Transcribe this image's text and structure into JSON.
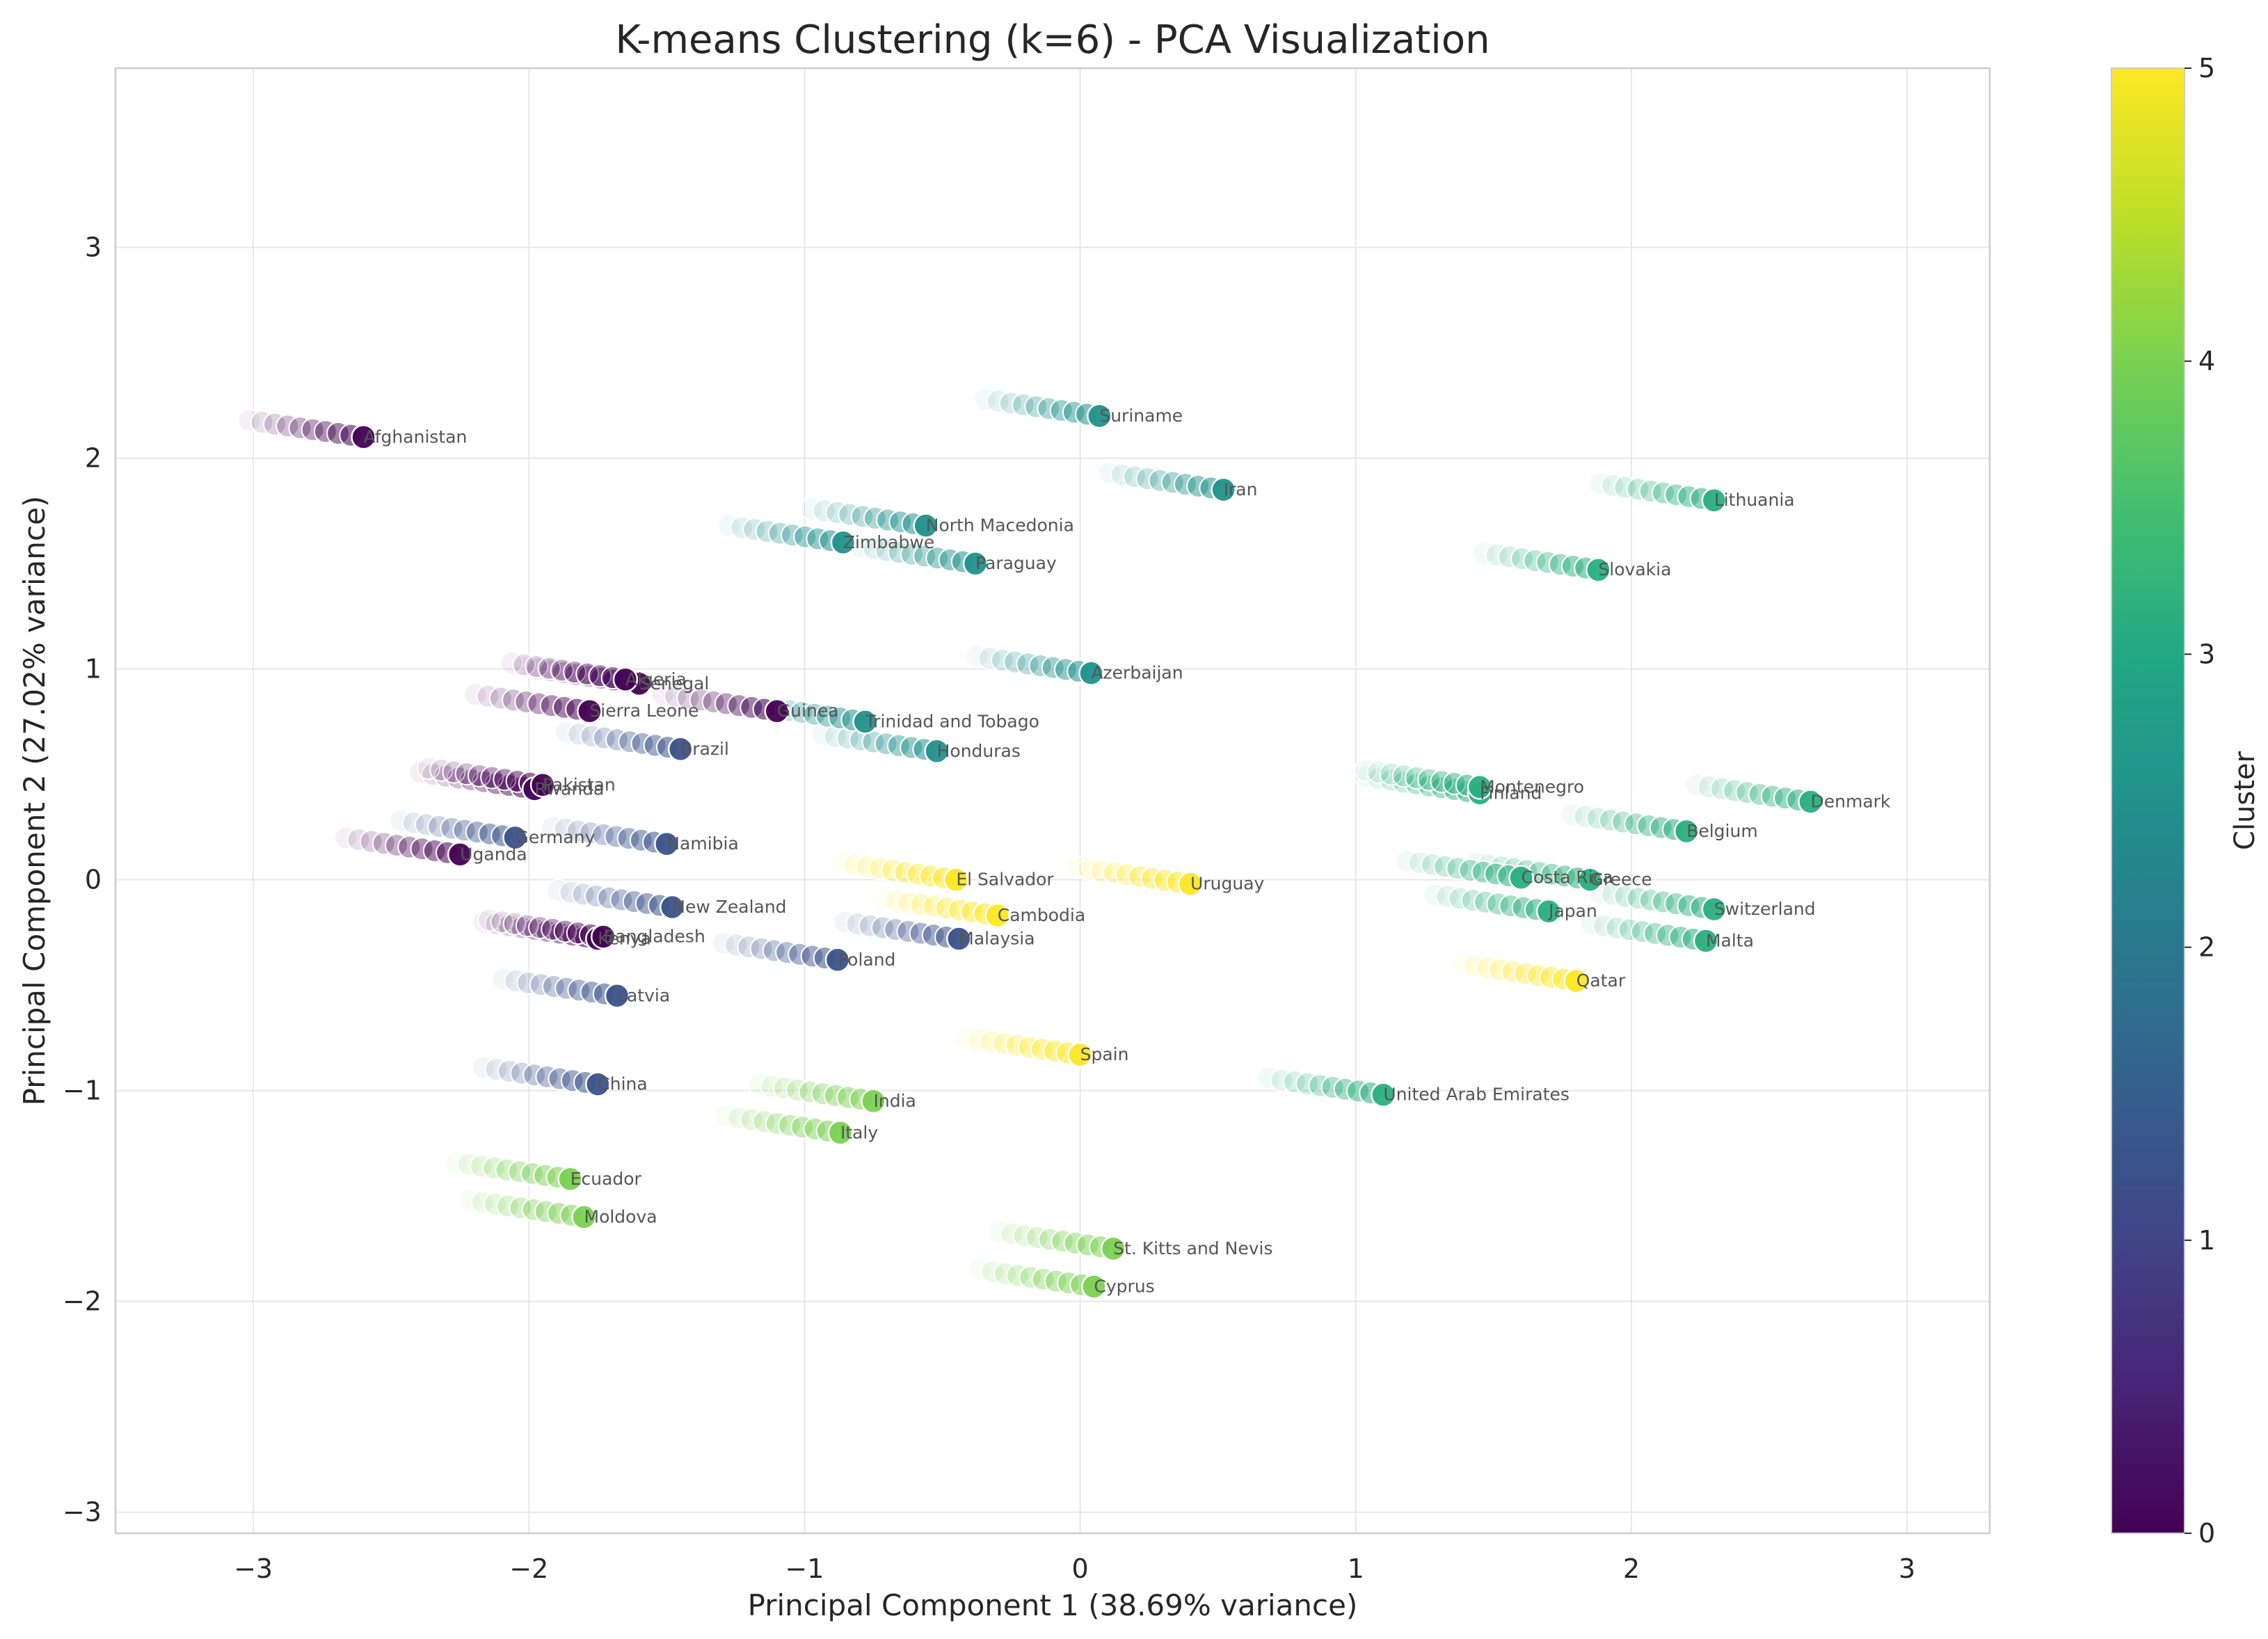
{
  "chart_data": {
    "type": "scatter",
    "title": "K-means Clustering (k=6) - PCA Visualization",
    "xlabel": "Principal Component 1 (38.69% variance)",
    "ylabel": "Principal Component 2 (27.02% variance)",
    "xlim": [
      -3.5,
      3.3
    ],
    "ylim": [
      -3.1,
      3.85
    ],
    "xticks": [
      -3,
      -2,
      -1,
      0,
      1,
      2,
      3
    ],
    "yticks": [
      -3,
      -2,
      -1,
      0,
      1,
      2,
      3
    ],
    "xtick_labels": [
      "−3",
      "−2",
      "−1",
      "0",
      "1",
      "2",
      "3"
    ],
    "ytick_labels": [
      "−3",
      "−2",
      "−1",
      "0",
      "1",
      "2",
      "3"
    ],
    "grid": true,
    "colormap": "viridis",
    "colorbar": {
      "label": "Cluster",
      "range": [
        0,
        5
      ],
      "ticks": [
        "0",
        "1",
        "2",
        "3",
        "4",
        "5"
      ]
    },
    "cluster_colors": [
      "#440154",
      "#3b528b",
      "#21918c",
      "#29af7f",
      "#7ad151",
      "#fde725"
    ],
    "points": [
      {
        "label": "Afghanistan",
        "x": -2.6,
        "y": 2.1,
        "cluster": 0
      },
      {
        "label": "Algeria",
        "x": -1.65,
        "y": 0.95,
        "cluster": 0
      },
      {
        "label": "Senegal",
        "x": -1.6,
        "y": 0.93,
        "cluster": 0
      },
      {
        "label": "Sierra Leone",
        "x": -1.78,
        "y": 0.8,
        "cluster": 0
      },
      {
        "label": "Guinea",
        "x": -1.1,
        "y": 0.8,
        "cluster": 0
      },
      {
        "label": "Pakistan",
        "x": -1.95,
        "y": 0.45,
        "cluster": 0
      },
      {
        "label": "Rwanda",
        "x": -1.98,
        "y": 0.43,
        "cluster": 0
      },
      {
        "label": "Uganda",
        "x": -2.25,
        "y": 0.12,
        "cluster": 0
      },
      {
        "label": "Kenya",
        "x": -1.75,
        "y": -0.28,
        "cluster": 0
      },
      {
        "label": "Bangladesh",
        "x": -1.73,
        "y": -0.27,
        "cluster": 0
      },
      {
        "label": "Brazil",
        "x": -1.45,
        "y": 0.62,
        "cluster": 1
      },
      {
        "label": "Germany",
        "x": -2.05,
        "y": 0.2,
        "cluster": 1
      },
      {
        "label": "Namibia",
        "x": -1.5,
        "y": 0.17,
        "cluster": 1
      },
      {
        "label": "New Zealand",
        "x": -1.48,
        "y": -0.13,
        "cluster": 1
      },
      {
        "label": "Latvia",
        "x": -1.68,
        "y": -0.55,
        "cluster": 1
      },
      {
        "label": "Poland",
        "x": -0.88,
        "y": -0.38,
        "cluster": 1
      },
      {
        "label": "Malaysia",
        "x": -0.44,
        "y": -0.28,
        "cluster": 1
      },
      {
        "label": "China",
        "x": -1.75,
        "y": -0.97,
        "cluster": 1
      },
      {
        "label": "Zimbabwe",
        "x": -0.86,
        "y": 1.6,
        "cluster": 2
      },
      {
        "label": "North Macedonia",
        "x": -0.56,
        "y": 1.68,
        "cluster": 2
      },
      {
        "label": "Paraguay",
        "x": -0.38,
        "y": 1.5,
        "cluster": 2
      },
      {
        "label": "Suriname",
        "x": 0.07,
        "y": 2.2,
        "cluster": 2
      },
      {
        "label": "Iran",
        "x": 0.52,
        "y": 1.85,
        "cluster": 2
      },
      {
        "label": "Azerbaijan",
        "x": 0.04,
        "y": 0.98,
        "cluster": 2
      },
      {
        "label": "Trinidad and Tobago",
        "x": -0.78,
        "y": 0.75,
        "cluster": 2
      },
      {
        "label": "Honduras",
        "x": -0.52,
        "y": 0.61,
        "cluster": 2
      },
      {
        "label": "Lithuania",
        "x": 2.3,
        "y": 1.8,
        "cluster": 3
      },
      {
        "label": "Slovakia",
        "x": 1.88,
        "y": 1.47,
        "cluster": 3
      },
      {
        "label": "Montenegro",
        "x": 1.45,
        "y": 0.44,
        "cluster": 3
      },
      {
        "label": "Finland",
        "x": 1.45,
        "y": 0.41,
        "cluster": 3
      },
      {
        "label": "Denmark",
        "x": 2.65,
        "y": 0.37,
        "cluster": 3
      },
      {
        "label": "Belgium",
        "x": 2.2,
        "y": 0.23,
        "cluster": 3
      },
      {
        "label": "Costa Rica",
        "x": 1.6,
        "y": 0.01,
        "cluster": 3
      },
      {
        "label": "Greece",
        "x": 1.85,
        "y": 0.0,
        "cluster": 3
      },
      {
        "label": "Japan",
        "x": 1.7,
        "y": -0.15,
        "cluster": 3
      },
      {
        "label": "Switzerland",
        "x": 2.3,
        "y": -0.14,
        "cluster": 3
      },
      {
        "label": "Malta",
        "x": 2.27,
        "y": -0.29,
        "cluster": 3
      },
      {
        "label": "United Arab Emirates",
        "x": 1.1,
        "y": -1.02,
        "cluster": 3
      },
      {
        "label": "India",
        "x": -0.75,
        "y": -1.05,
        "cluster": 4
      },
      {
        "label": "Italy",
        "x": -0.87,
        "y": -1.2,
        "cluster": 4
      },
      {
        "label": "Ecuador",
        "x": -1.85,
        "y": -1.42,
        "cluster": 4
      },
      {
        "label": "Moldova",
        "x": -1.8,
        "y": -1.6,
        "cluster": 4
      },
      {
        "label": "St. Kitts and Nevis",
        "x": 0.12,
        "y": -1.75,
        "cluster": 4
      },
      {
        "label": "Cyprus",
        "x": 0.05,
        "y": -1.93,
        "cluster": 4
      },
      {
        "label": "El Salvador",
        "x": -0.45,
        "y": 0.0,
        "cluster": 5
      },
      {
        "label": "Cambodia",
        "x": -0.3,
        "y": -0.17,
        "cluster": 5
      },
      {
        "label": "Uruguay",
        "x": 0.4,
        "y": -0.02,
        "cluster": 5
      },
      {
        "label": "Spain",
        "x": 0.0,
        "y": -0.83,
        "cluster": 5
      },
      {
        "label": "Qatar",
        "x": 1.8,
        "y": -0.48,
        "cluster": 5
      }
    ],
    "streak_direction": [
      0.46,
      -0.088
    ]
  }
}
